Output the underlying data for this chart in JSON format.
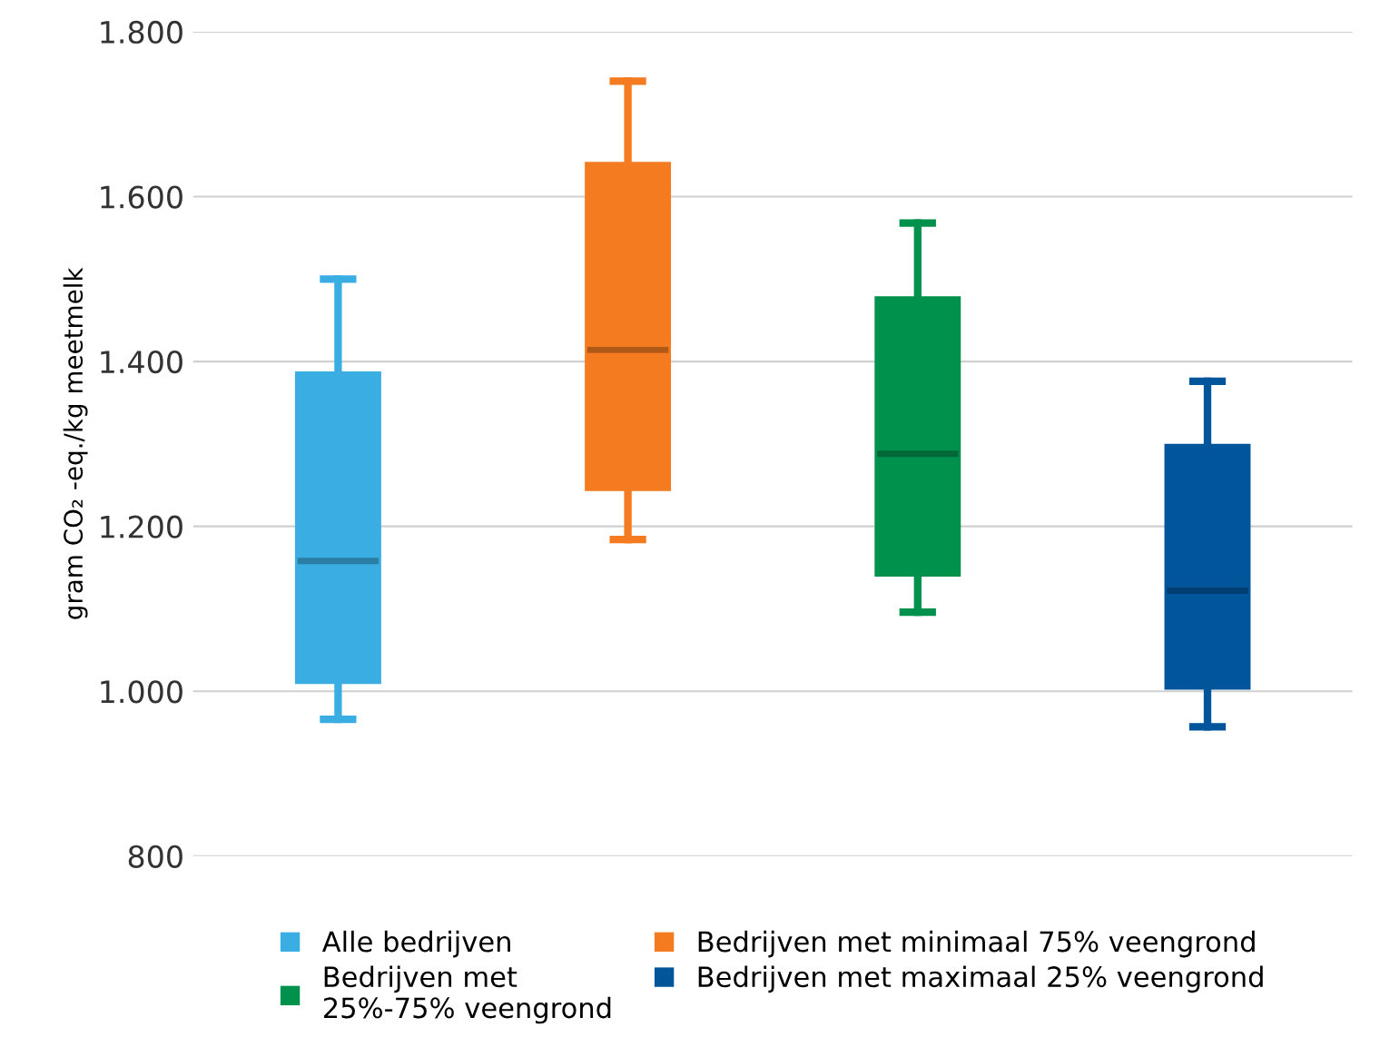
{
  "chart_data": {
    "type": "box",
    "ylabel": "gram CO₂ -eq./kg meetmelk",
    "categories": [
      null,
      null,
      null,
      null
    ],
    "series": [
      {
        "name": "Alle bedrijven",
        "color": "#3aaee3",
        "boxes": [
          {
            "low": 966,
            "q1": 1012,
            "median": 1158,
            "q3": 1385,
            "high": 1500
          },
          null,
          null,
          null
        ]
      },
      {
        "name": "Bedrijven met minimaal 75% veengrond",
        "color": "#f47b20",
        "boxes": [
          null,
          {
            "low": 1184,
            "q1": 1246,
            "median": 1414,
            "q3": 1639,
            "high": 1740
          },
          null,
          null
        ]
      },
      {
        "name": "Bedrijven met\n25%-75% veengrond",
        "color": "#00914c",
        "boxes": [
          null,
          null,
          {
            "low": 1096,
            "q1": 1142,
            "median": 1288,
            "q3": 1476,
            "high": 1568
          },
          null
        ]
      },
      {
        "name": "Bedrijven met maximaal 25% veengrond",
        "color": "#00559b",
        "boxes": [
          null,
          null,
          null,
          {
            "low": 957,
            "q1": 1005,
            "median": 1122,
            "q3": 1297,
            "high": 1376
          }
        ]
      }
    ],
    "ylim": [
      800,
      1800
    ],
    "yticks": [
      {
        "value": 800,
        "label": "800"
      },
      {
        "value": 1000,
        "label": "1.000"
      },
      {
        "value": 1200,
        "label": "1.200"
      },
      {
        "value": 1400,
        "label": "1.400"
      },
      {
        "value": 1600,
        "label": "1.600"
      },
      {
        "value": 1800,
        "label": "1.800"
      }
    ],
    "grid": "y",
    "legend": "bottom"
  }
}
